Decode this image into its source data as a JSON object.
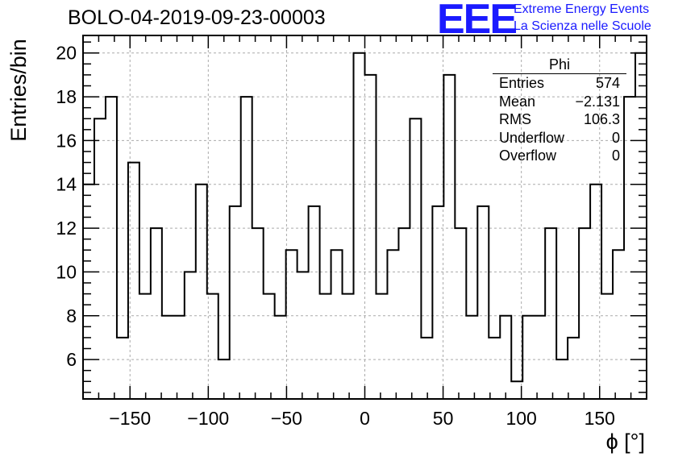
{
  "header": {
    "title": "BOLO-04-2019-09-23-00003",
    "logo_mark": "EEE",
    "logo_line1": "Extreme Energy Events",
    "logo_line2": "La Scienza nelle Scuole"
  },
  "stats": {
    "title": "Phi",
    "rows": [
      {
        "label": "Entries",
        "value": "574"
      },
      {
        "label": "Mean",
        "value": "−2.131"
      },
      {
        "label": "RMS",
        "value": "106.3"
      },
      {
        "label": "Underflow",
        "value": "0"
      },
      {
        "label": "Overflow",
        "value": "0"
      }
    ]
  },
  "chart_data": {
    "type": "histogram",
    "title": "BOLO-04-2019-09-23-00003",
    "xlabel": "ϕ [°]",
    "ylabel": "Entries/bin",
    "xlim": [
      -180,
      180
    ],
    "ylim": [
      4.2,
      20.8
    ],
    "bin_width": 7.2,
    "bin_edges_start": -180,
    "values": [
      14,
      17,
      18,
      7,
      15,
      9,
      12,
      8,
      8,
      10,
      14,
      9,
      6,
      13,
      18,
      12,
      9,
      8,
      11,
      10,
      13,
      9,
      11,
      9,
      20,
      19,
      9,
      11,
      12,
      17,
      7,
      13,
      19,
      12,
      8,
      13,
      7,
      8,
      5,
      8,
      8,
      12,
      6,
      7,
      12,
      14,
      9,
      11,
      18,
      20
    ],
    "x_ticks": [
      -150,
      -100,
      -50,
      0,
      50,
      100,
      150
    ],
    "x_tick_labels": [
      "−150",
      "−100",
      "−50",
      "0",
      "50",
      "100",
      "150"
    ],
    "y_ticks": [
      6,
      8,
      10,
      12,
      14,
      16,
      18,
      20
    ],
    "y_tick_labels": [
      "6",
      "8",
      "10",
      "12",
      "14",
      "16",
      "18",
      "20"
    ],
    "grid": true,
    "line_color": "#000000"
  }
}
